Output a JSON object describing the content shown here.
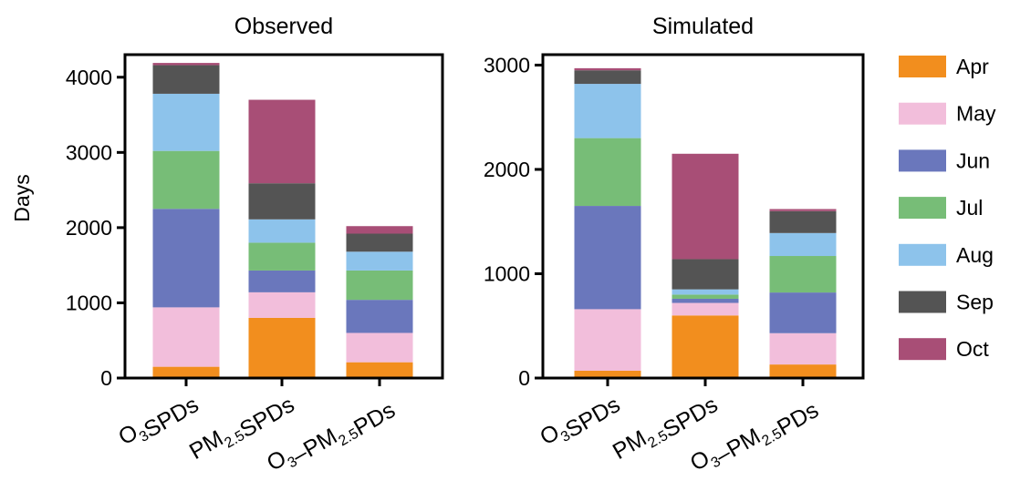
{
  "chart_data": [
    {
      "type": "bar",
      "stacked": true,
      "title": "Observed",
      "ylabel": "Days",
      "ylim": [
        0,
        4300
      ],
      "yticks": [
        0,
        1000,
        2000,
        3000,
        4000
      ],
      "categories": [
        "O3SPDs",
        "PM2.5SPDs",
        "O3-PM2.5PDs"
      ],
      "series": [
        {
          "name": "Apr",
          "values": [
            150,
            800,
            210
          ]
        },
        {
          "name": "May",
          "values": [
            790,
            340,
            390
          ]
        },
        {
          "name": "Jun",
          "values": [
            1310,
            290,
            440
          ]
        },
        {
          "name": "Jul",
          "values": [
            770,
            370,
            390
          ]
        },
        {
          "name": "Aug",
          "values": [
            760,
            310,
            250
          ]
        },
        {
          "name": "Sep",
          "values": [
            380,
            480,
            240
          ]
        },
        {
          "name": "Oct",
          "values": [
            30,
            1110,
            100
          ]
        }
      ]
    },
    {
      "type": "bar",
      "stacked": true,
      "title": "Simulated",
      "ylabel": "",
      "ylim": [
        0,
        3100
      ],
      "yticks": [
        0,
        1000,
        2000,
        3000
      ],
      "categories": [
        "O3SPDs",
        "PM2.5SPDs",
        "O3-PM2.5PDs"
      ],
      "series": [
        {
          "name": "Apr",
          "values": [
            70,
            600,
            130
          ]
        },
        {
          "name": "May",
          "values": [
            590,
            120,
            300
          ]
        },
        {
          "name": "Jun",
          "values": [
            990,
            40,
            390
          ]
        },
        {
          "name": "Jul",
          "values": [
            650,
            40,
            350
          ]
        },
        {
          "name": "Aug",
          "values": [
            520,
            50,
            220
          ]
        },
        {
          "name": "Sep",
          "values": [
            130,
            290,
            210
          ]
        },
        {
          "name": "Oct",
          "values": [
            20,
            1010,
            20
          ]
        }
      ]
    }
  ],
  "legend": {
    "position": "right",
    "items": [
      {
        "name": "Apr",
        "color": "#F28E1E"
      },
      {
        "name": "May",
        "color": "#F2BEDB"
      },
      {
        "name": "Jun",
        "color": "#6A77BC"
      },
      {
        "name": "Jul",
        "color": "#77BD77"
      },
      {
        "name": "Aug",
        "color": "#8DC3EB"
      },
      {
        "name": "Sep",
        "color": "#545454"
      },
      {
        "name": "Oct",
        "color": "#A84E76"
      }
    ]
  }
}
